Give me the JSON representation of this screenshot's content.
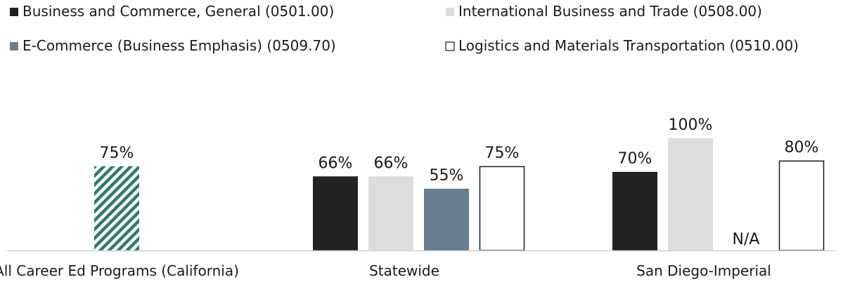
{
  "chart_data": {
    "type": "bar",
    "categories": [
      "All Career Ed Programs (California)",
      "Statewide",
      "San Diego-Imperial"
    ],
    "ylim": [
      0,
      100
    ],
    "grid": false,
    "legend_position": "top",
    "benchmark": {
      "category": "All Career Ed Programs (California)",
      "value": 75,
      "label": "75%",
      "pattern": "diagonal-hatch",
      "color": "#2f7a6a"
    },
    "series": [
      {
        "name": "Business and Commerce, General (0501.00)",
        "color": "#222222",
        "values": [
          null,
          66,
          70
        ],
        "labels": [
          "",
          "66%",
          "70%"
        ]
      },
      {
        "name": "International Business and Trade (0508.00)",
        "color": "#dddddd",
        "values": [
          null,
          66,
          100
        ],
        "labels": [
          "",
          "66%",
          "100%"
        ]
      },
      {
        "name": "E-Commerce (Business Emphasis) (0509.70)",
        "color": "#687f91",
        "values": [
          null,
          55,
          null
        ],
        "labels": [
          "",
          "55%",
          "N/A"
        ]
      },
      {
        "name": "Logistics and Materials Transportation (0510.00)",
        "color": "#ffffff",
        "outline": "#1a1a1a",
        "values": [
          null,
          75,
          80
        ],
        "labels": [
          "",
          "75%",
          "80%"
        ]
      }
    ]
  }
}
